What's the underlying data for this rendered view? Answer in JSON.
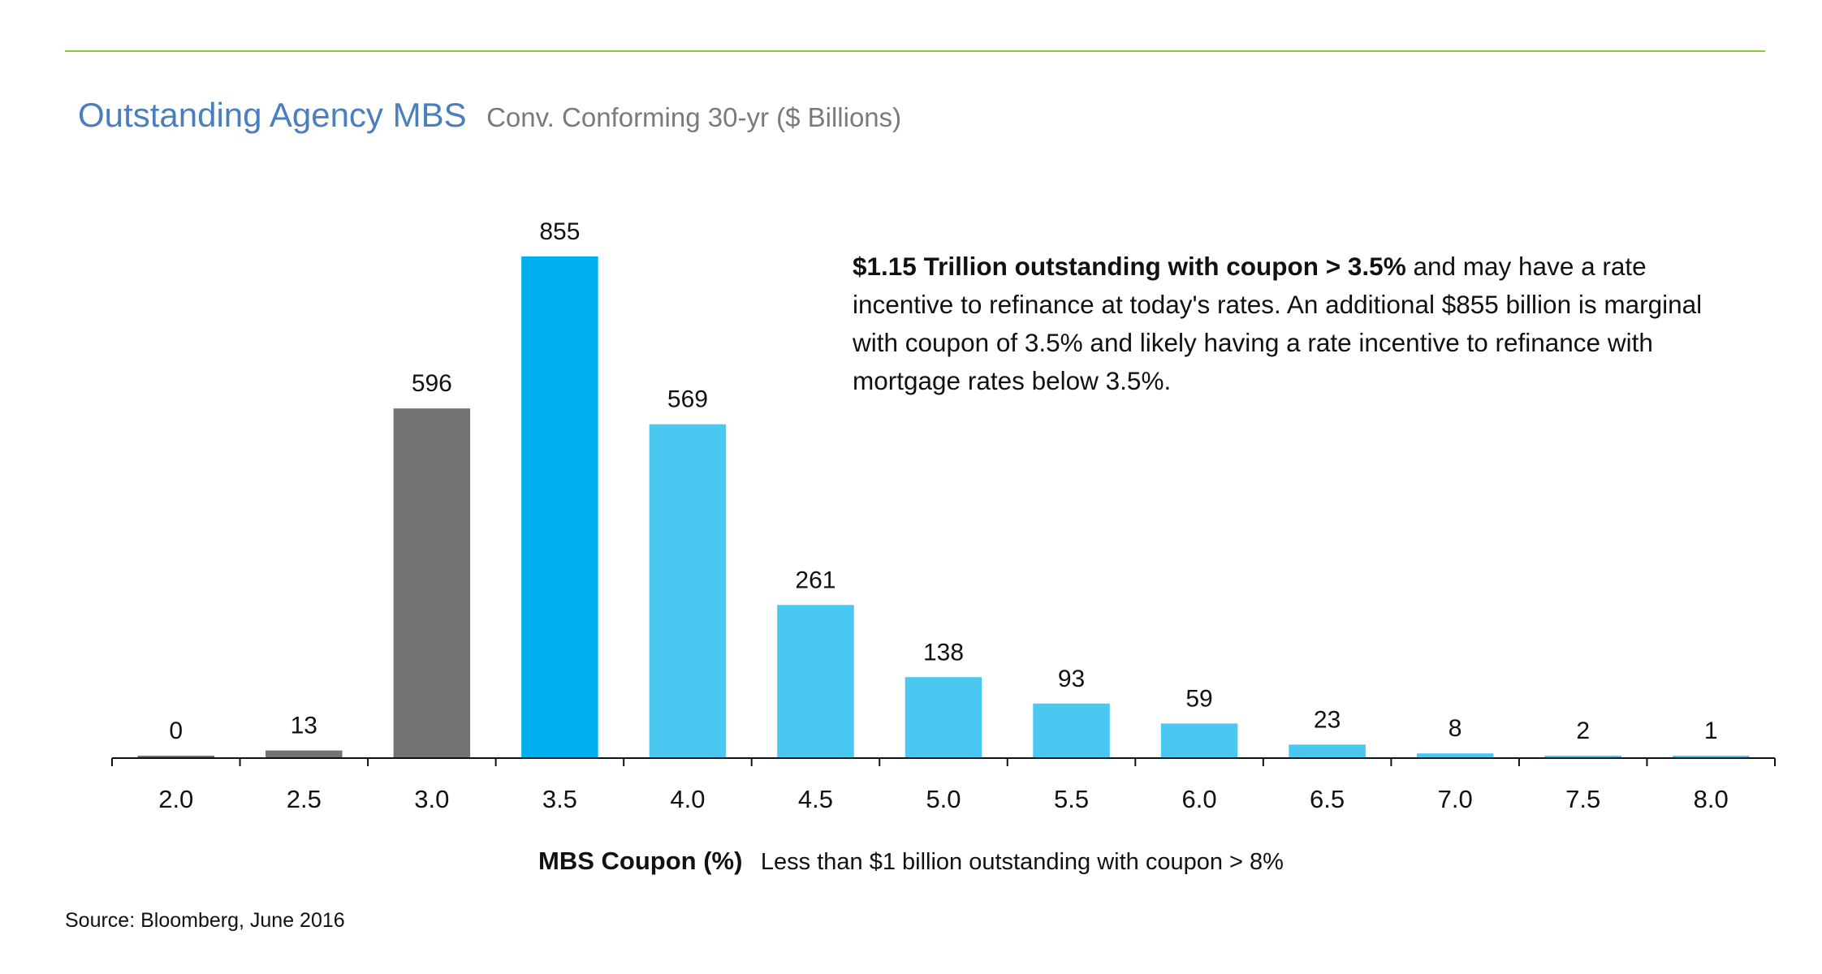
{
  "chart_data": {
    "type": "bar",
    "title": "Outstanding Agency MBS",
    "subtitle": "Conv. Conforming 30-yr ($ Billions)",
    "xlabel": "MBS Coupon (%)",
    "xlabel_note": "Less than $1 billion outstanding with coupon > 8%",
    "ylabel": "",
    "categories": [
      "2.0",
      "2.5",
      "3.0",
      "3.5",
      "4.0",
      "4.5",
      "5.0",
      "5.5",
      "6.0",
      "6.5",
      "7.0",
      "7.5",
      "8.0"
    ],
    "values": [
      0,
      13,
      596,
      855,
      569,
      261,
      138,
      93,
      59,
      23,
      8,
      2,
      1
    ],
    "data_labels": [
      "0",
      "13",
      "596",
      "855",
      "569",
      "261",
      "138",
      "93",
      "59",
      "23",
      "8",
      "2",
      "1"
    ],
    "ylim": [
      0,
      855
    ],
    "grid": false,
    "legend": "none",
    "colors": {
      "below": "#737373",
      "marginal": "#00b0ee",
      "above": "#4bc8f1"
    },
    "bar_groups": [
      "below",
      "below",
      "below",
      "marginal",
      "above",
      "above",
      "above",
      "above",
      "above",
      "above",
      "above",
      "above",
      "above"
    ]
  },
  "annotation": {
    "bold": "$1.15 Trillion outstanding with coupon > 3.5%",
    "rest": " and may have a rate incentive to refinance at today's rates. An additional $855 billion is marginal with coupon of 3.5% and likely having a rate incentive to refinance with mortgage rates below 3.5%."
  },
  "source": "Source: Bloomberg, June 2016",
  "colors": {
    "accent_rule": "#8dc63f",
    "title": "#4a7ebf",
    "subtitle": "#7a7a7a"
  }
}
